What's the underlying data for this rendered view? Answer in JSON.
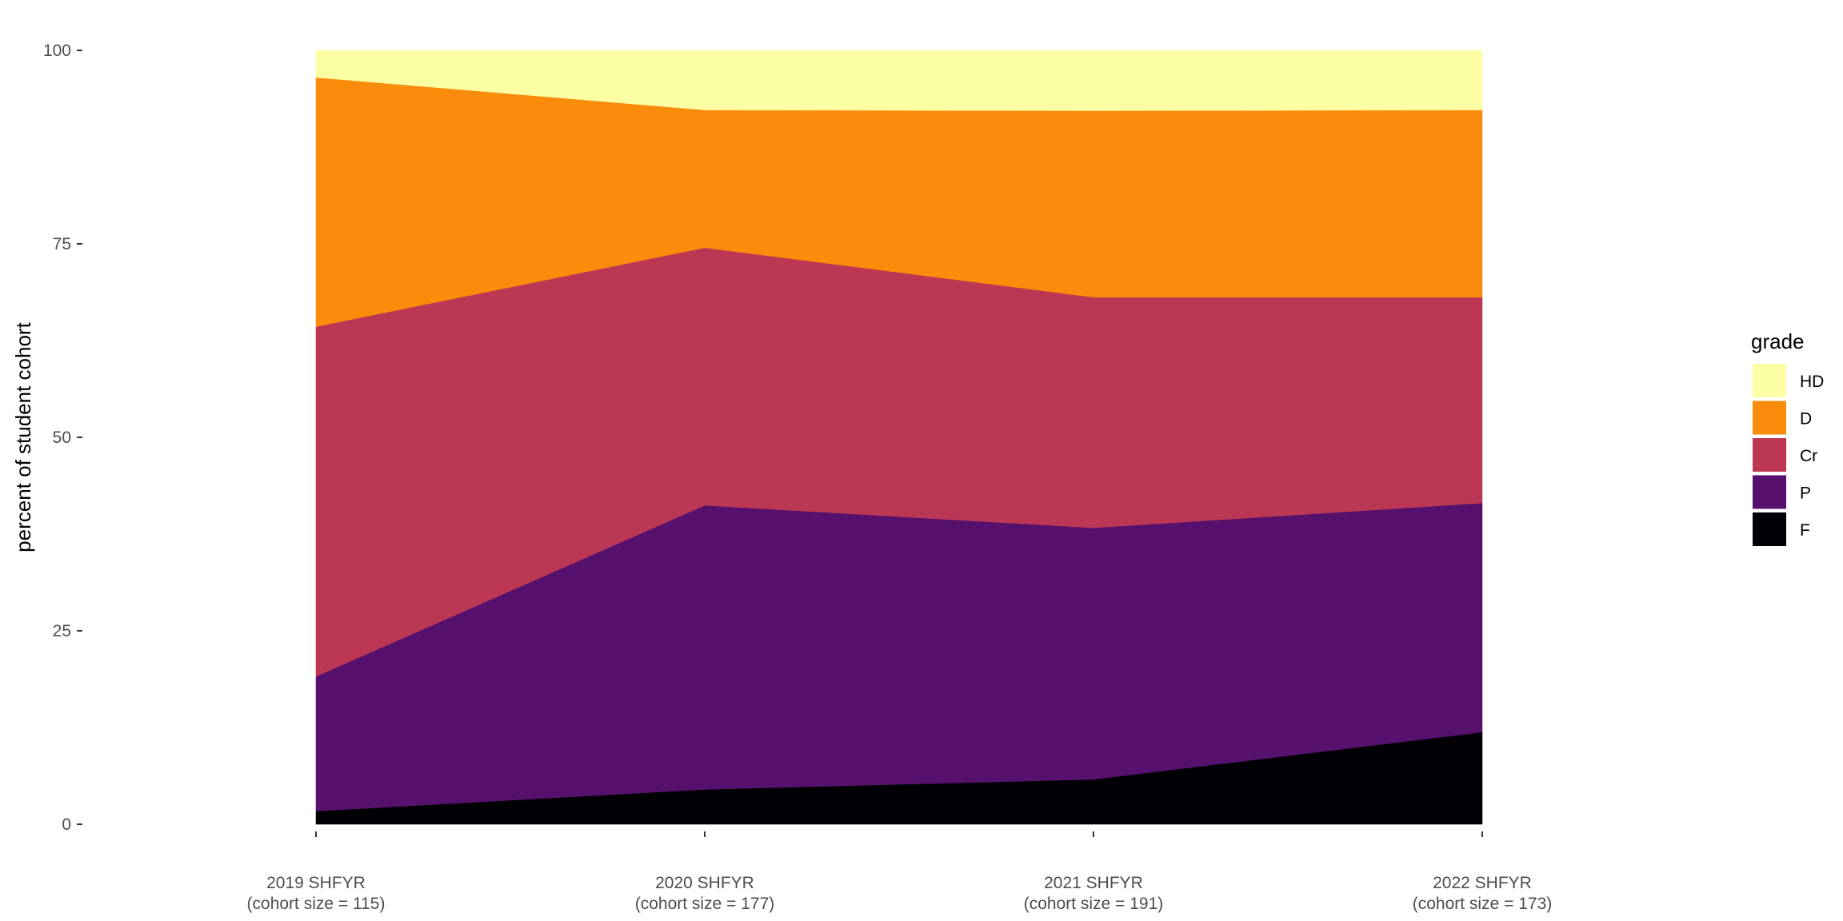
{
  "chart_data": {
    "type": "area",
    "stacked": true,
    "xlabel": "",
    "ylabel": "percent of student cohort",
    "ylim": [
      0,
      100
    ],
    "yticks": [
      0,
      25,
      50,
      75,
      100
    ],
    "grid": false,
    "legend_position": "right",
    "legend_title": "grade",
    "categories": [
      [
        "2019 SHFYR",
        "(cohort size = 115)"
      ],
      [
        "2020 SHFYR",
        "(cohort size = 177)"
      ],
      [
        "2021 SHFYR",
        "(cohort size = 191)"
      ],
      [
        "2022 SHFYR",
        "(cohort size = 173)"
      ]
    ],
    "series": [
      {
        "name": "F",
        "color": "#000004",
        "values": [
          1.7,
          4.5,
          5.8,
          11.9
        ]
      },
      {
        "name": "P",
        "color": "#56106e",
        "values": [
          17.4,
          36.7,
          32.5,
          29.6
        ]
      },
      {
        "name": "Cr",
        "color": "#bb3754",
        "values": [
          45.2,
          33.3,
          29.8,
          26.6
        ]
      },
      {
        "name": "D",
        "color": "#f98c0a",
        "values": [
          32.2,
          17.8,
          24.1,
          24.2
        ]
      },
      {
        "name": "HD",
        "color": "#fcffa4",
        "values": [
          3.5,
          7.7,
          7.8,
          7.7
        ]
      }
    ],
    "legend_order": [
      "HD",
      "D",
      "Cr",
      "P",
      "F"
    ]
  }
}
